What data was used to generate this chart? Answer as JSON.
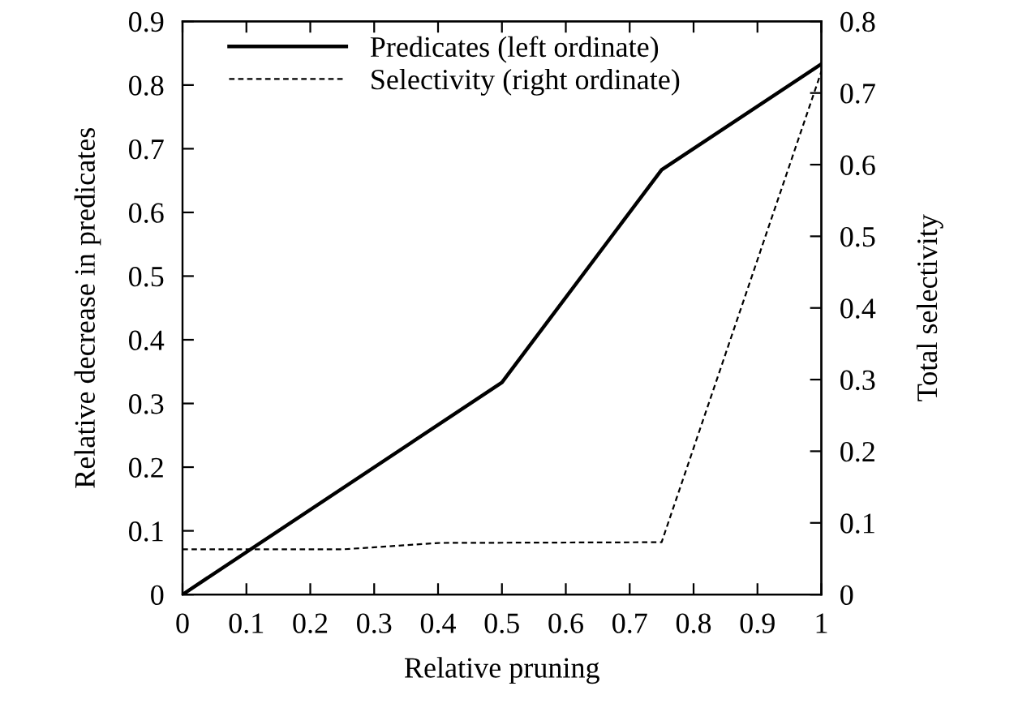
{
  "chart_data": {
    "type": "line",
    "xlabel": "Relative pruning",
    "ylabel": "Relative decrease in predicates",
    "y2label": "Total selectivity",
    "series": [
      {
        "name": "Predicates (left ordinate)",
        "color": "#000000",
        "line_style": "solid",
        "x": [
          0,
          0.5,
          0.75,
          1
        ],
        "values": [
          0,
          0.333,
          0.667,
          0.833
        ]
      },
      {
        "name": "Selectivity (right ordinate)",
        "color": "#000000",
        "line_style": "dashed",
        "axis": "y2",
        "x": [
          0,
          0.25,
          0.4,
          0.75,
          1
        ],
        "values": [
          0.063,
          0.063,
          0.072,
          0.073,
          0.73
        ]
      }
    ],
    "xlim": [
      0,
      1
    ],
    "xticks": [
      0,
      0.1,
      0.2,
      0.3,
      0.4,
      0.5,
      0.6,
      0.7,
      0.8,
      0.9,
      1
    ],
    "ylim": [
      0,
      0.9
    ],
    "yticks": [
      0,
      0.1,
      0.2,
      0.3,
      0.4,
      0.5,
      0.6,
      0.7,
      0.8,
      0.9
    ],
    "y2lim": [
      0,
      0.8
    ],
    "y2ticks": [
      0,
      0.1,
      0.2,
      0.3,
      0.4,
      0.5,
      0.6,
      0.7,
      0.8
    ],
    "grid": false,
    "legend": "top left",
    "marker": "none"
  }
}
